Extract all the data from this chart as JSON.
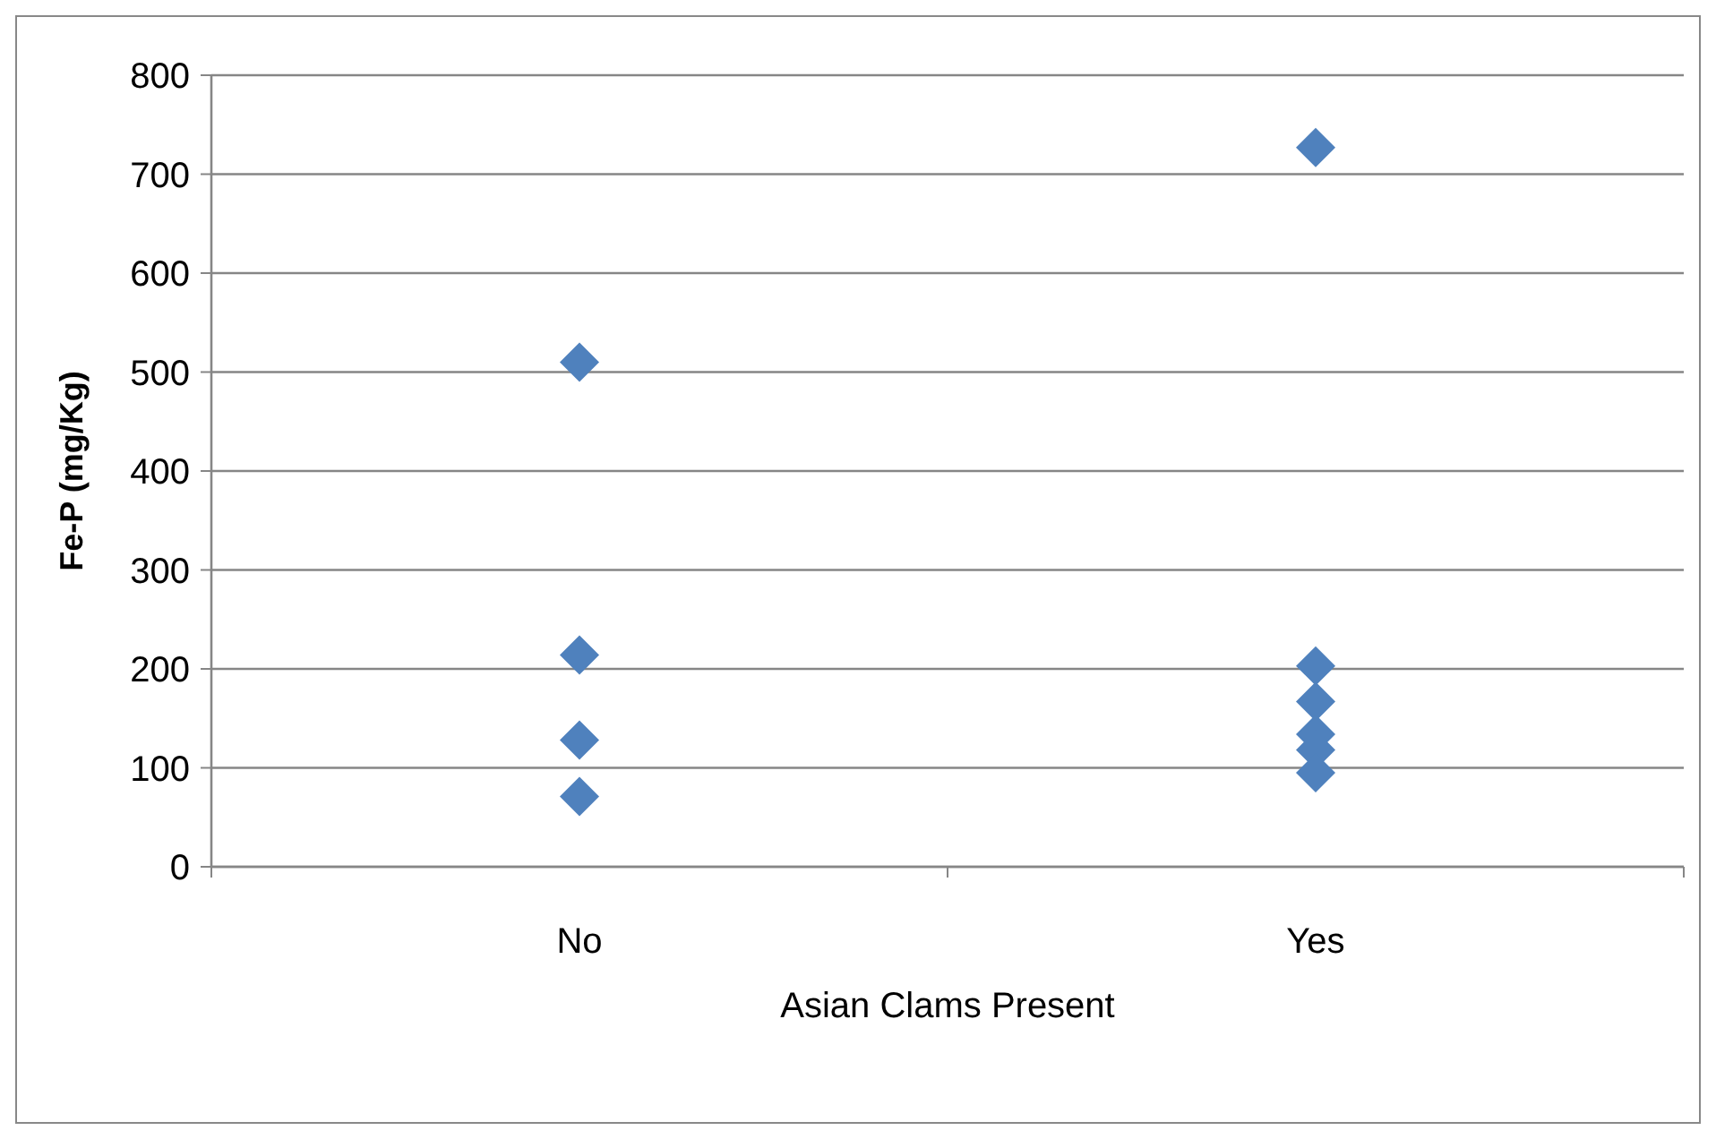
{
  "chart_data": {
    "type": "scatter",
    "xlabel": "Asian Clams Present",
    "ylabel": "Fe-P (mg/Kg)",
    "categories": [
      "No",
      "Yes"
    ],
    "series": [
      {
        "color": "#4f81bd",
        "x": [
          "No",
          "No",
          "No",
          "No",
          "Yes",
          "Yes",
          "Yes",
          "Yes",
          "Yes",
          "Yes"
        ],
        "values": [
          510,
          214,
          128,
          71,
          727,
          203,
          167,
          134,
          118,
          95
        ]
      }
    ],
    "ylim": [
      0,
      800
    ],
    "yticks": [
      0,
      100,
      200,
      300,
      400,
      500,
      600,
      700,
      800
    ],
    "grid": "y",
    "marker": "diamond"
  }
}
